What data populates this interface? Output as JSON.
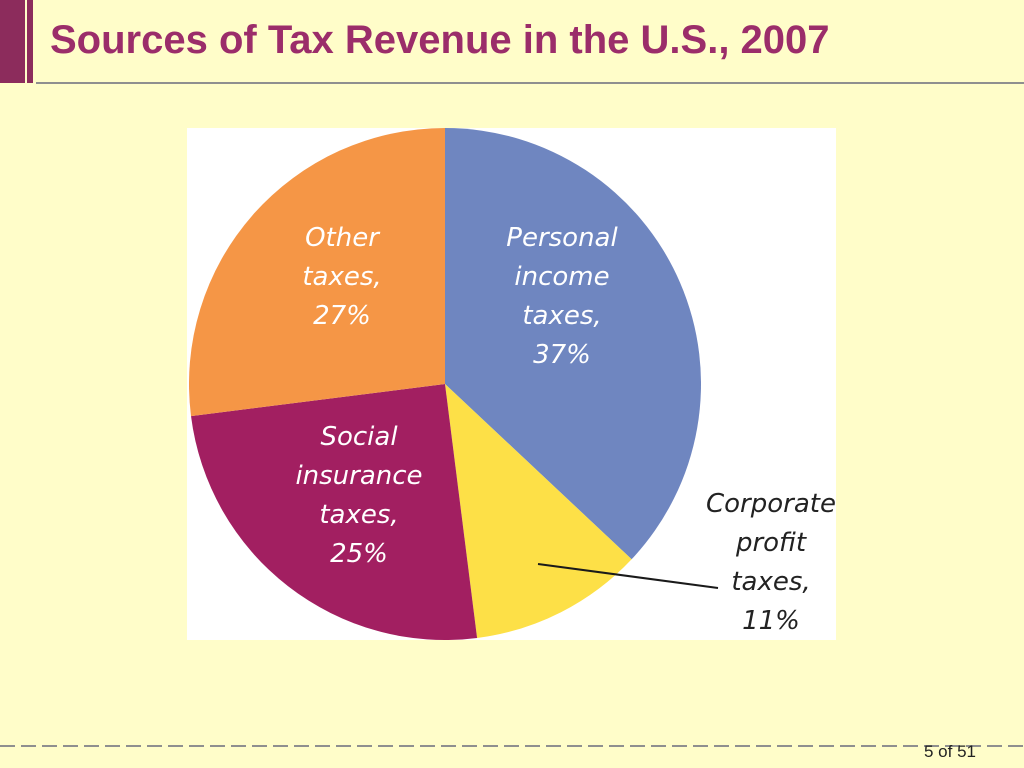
{
  "slide": {
    "title": "Sources of Tax Revenue in the U.S., 2007",
    "page_number": "5 of 51",
    "colors": {
      "background": "#fffdc9",
      "title": "#9b2d6a",
      "accent_bar": "#8c2c5c",
      "rule": "#8f8f8f"
    }
  },
  "chart_data": {
    "type": "pie",
    "title": "",
    "unit": "%",
    "slices": [
      {
        "category": "Personal income taxes",
        "value": 37,
        "color": "#6f86c0",
        "label_lines": [
          "Personal",
          "income",
          "taxes,",
          "37%"
        ]
      },
      {
        "category": "Corporate profit taxes",
        "value": 11,
        "color": "#fde047",
        "label_lines": [
          "Corporate",
          "profit",
          "taxes,",
          "11%"
        ]
      },
      {
        "category": "Social insurance taxes",
        "value": 25,
        "color": "#a21f61",
        "label_lines": [
          "Social",
          "insurance",
          "taxes,",
          "25%"
        ]
      },
      {
        "category": "Other taxes",
        "value": 27,
        "color": "#f59646",
        "label_lines": [
          "Other",
          "taxes,",
          "27%"
        ]
      }
    ],
    "start_position": "12 o'clock",
    "direction": "clockwise",
    "label_color": "#ffffff",
    "outside_label_color": "#222222",
    "leader_line_for": "Corporate profit taxes"
  }
}
